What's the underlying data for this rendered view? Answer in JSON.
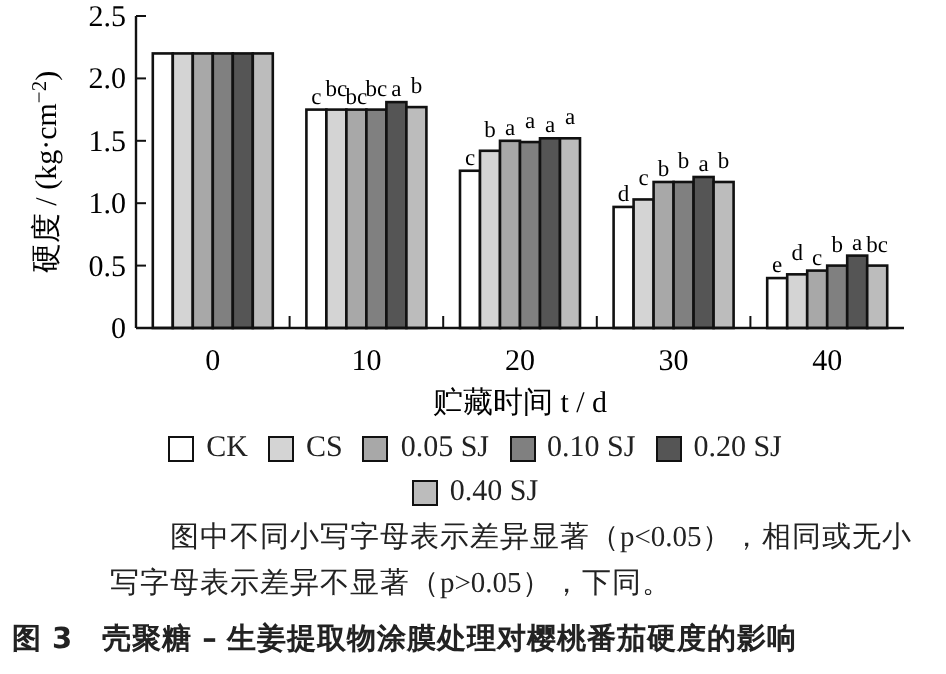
{
  "chart_data": {
    "type": "bar",
    "title": "图 3　壳聚糖 – 生姜提取物涂膜处理对樱桃番茄硬度的影响",
    "xlabel": "贮藏时间 t / d",
    "ylabel": "硬度 / (kg·cm$^{−2}$)",
    "categories": [
      "0",
      "10",
      "20",
      "30",
      "40"
    ],
    "series": [
      {
        "name": "CK",
        "color": "#ffffff",
        "values": [
          2.2,
          1.75,
          1.26,
          0.97,
          0.4
        ]
      },
      {
        "name": "CS",
        "color": "#d4d4d4",
        "values": [
          2.2,
          1.75,
          1.42,
          1.03,
          0.43
        ]
      },
      {
        "name": "0.05 SJ",
        "color": "#a8a8a8",
        "values": [
          2.2,
          1.75,
          1.5,
          1.17,
          0.46
        ]
      },
      {
        "name": "0.10 SJ",
        "color": "#808080",
        "values": [
          2.2,
          1.75,
          1.49,
          1.17,
          0.5
        ]
      },
      {
        "name": "0.20 SJ",
        "color": "#555555",
        "values": [
          2.2,
          1.81,
          1.52,
          1.21,
          0.58
        ]
      },
      {
        "name": "0.40 SJ",
        "color": "#bcbcbc",
        "values": [
          2.2,
          1.77,
          1.52,
          1.17,
          0.5
        ]
      }
    ],
    "ylim": [
      0,
      2.5
    ],
    "yticks": [
      0,
      {
        "value": 0.5,
        "label": "0.5"
      },
      {
        "value": 1,
        "label": "1.0"
      },
      {
        "value": 1.5,
        "label": "1.5"
      },
      {
        "value": 2,
        "label": "2.0"
      },
      {
        "value": 2.5,
        "label": "2.5"
      }
    ],
    "grid": false,
    "legend": "bottom",
    "annotations": [
      {
        "text": "c",
        "x": "10",
        "y": 1.75
      },
      {
        "text": "bc",
        "x": "10",
        "y": 1.75
      },
      {
        "text": "bc",
        "x": "10",
        "y": 1.75
      },
      {
        "text": "bc",
        "x": "10",
        "y": 1.75
      },
      {
        "text": "a",
        "x": "10",
        "y": 1.81
      },
      {
        "text": "b",
        "x": "10",
        "y": 1.77
      },
      {
        "text": "c",
        "x": "20",
        "y": 1.26
      },
      {
        "text": "b",
        "x": "20",
        "y": 1.42
      },
      {
        "text": "a",
        "x": "20",
        "y": 1.5
      },
      {
        "text": "a",
        "x": "20",
        "y": 1.49
      },
      {
        "text": "a",
        "x": "20",
        "y": 1.52
      },
      {
        "text": "a",
        "x": "20",
        "y": 1.52
      },
      {
        "text": "d",
        "x": "30",
        "y": 0.97
      },
      {
        "text": "c",
        "x": "30",
        "y": 1.03
      },
      {
        "text": "b",
        "x": "30",
        "y": 1.17
      },
      {
        "text": "b",
        "x": "30",
        "y": 1.17
      },
      {
        "text": "a",
        "x": "30",
        "y": 1.21
      },
      {
        "text": "b",
        "x": "30",
        "y": 1.17
      },
      {
        "text": "e",
        "x": "40",
        "y": 0.4
      },
      {
        "text": "d",
        "x": "40",
        "y": 0.43
      },
      {
        "text": "c",
        "x": "40",
        "y": 0.46
      },
      {
        "text": "b",
        "x": "40",
        "y": 0.5
      },
      {
        "text": "a",
        "x": "40",
        "y": 0.58
      },
      {
        "text": "bc",
        "x": "40",
        "y": 0.5
      },
      "图中不同小写字母表示差异显著（p<0.05），相同或无小写字母表示差异不显著（p>0.05），下同。"
    ]
  }
}
